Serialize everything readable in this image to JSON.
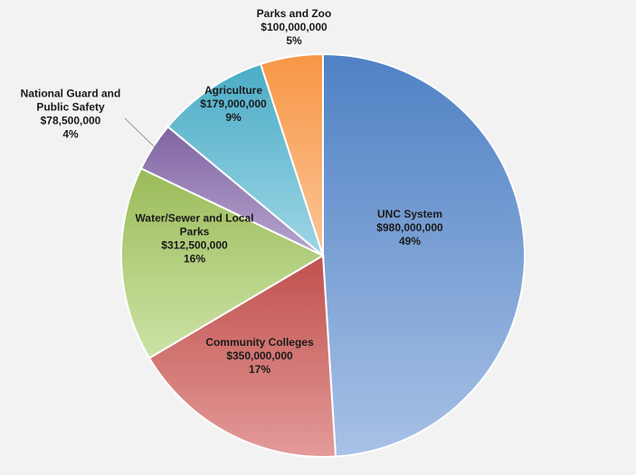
{
  "chart_data": {
    "type": "pie",
    "start_angle_deg": 0,
    "direction": "clockwise",
    "legend": "none",
    "slices": [
      {
        "label": "UNC System",
        "amount": "$980,000,000",
        "percent_label": "49%",
        "value": 980000000,
        "colors": [
          "#4f81c4",
          "#a8c1e6"
        ]
      },
      {
        "label": "Community Colleges",
        "amount": "$350,000,000",
        "percent_label": "17%",
        "value": 350000000,
        "colors": [
          "#c0504d",
          "#e39b99"
        ]
      },
      {
        "label": "Water/Sewer and Local Parks",
        "label_lines": [
          "Water/Sewer and Local",
          "Parks"
        ],
        "amount": "$312,500,000",
        "percent_label": "16%",
        "value": 312500000,
        "colors": [
          "#9bbb59",
          "#cde3a6"
        ]
      },
      {
        "label": "National Guard and Public Safety",
        "label_lines": [
          "National Guard and",
          "Public Safety"
        ],
        "amount": "$78,500,000",
        "percent_label": "4%",
        "value": 78500000,
        "colors": [
          "#8064a2",
          "#b7a5cf"
        ]
      },
      {
        "label": "Agriculture",
        "amount": "$179,000,000",
        "percent_label": "9%",
        "value": 179000000,
        "colors": [
          "#4bacc6",
          "#9ed6e6"
        ]
      },
      {
        "label": "Parks and Zoo",
        "amount": "$100,000,000",
        "percent_label": "5%",
        "value": 100000000,
        "colors": [
          "#f79646",
          "#fcc596"
        ]
      }
    ]
  }
}
